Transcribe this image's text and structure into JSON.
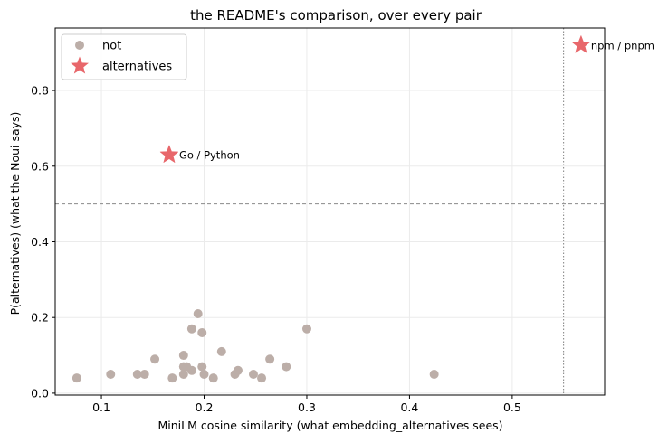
{
  "chart_data": {
    "type": "scatter",
    "title": "the README's comparison, over every pair",
    "xlabel": "MiniLM cosine similarity  (what embedding_alternatives sees)",
    "ylabel": "P(alternatives)  (what the Noui says)",
    "xlim": [
      0.055,
      0.59
    ],
    "ylim": [
      -0.005,
      0.965
    ],
    "xticks": [
      0.1,
      0.2,
      0.3,
      0.4,
      0.5
    ],
    "xtick_labels": [
      "0.1",
      "0.2",
      "0.3",
      "0.4",
      "0.5"
    ],
    "yticks": [
      0.0,
      0.2,
      0.4,
      0.6,
      0.8
    ],
    "ytick_labels": [
      "0.0",
      "0.2",
      "0.4",
      "0.6",
      "0.8"
    ],
    "grid": true,
    "legend_position": "top-left",
    "hline": 0.5,
    "vline": 0.55,
    "series": [
      {
        "name": "not",
        "marker": "circle",
        "color": "#bcaea8",
        "points": [
          {
            "x": 0.076,
            "y": 0.04
          },
          {
            "x": 0.109,
            "y": 0.05
          },
          {
            "x": 0.135,
            "y": 0.05
          },
          {
            "x": 0.142,
            "y": 0.05
          },
          {
            "x": 0.152,
            "y": 0.09
          },
          {
            "x": 0.169,
            "y": 0.04
          },
          {
            "x": 0.18,
            "y": 0.1
          },
          {
            "x": 0.18,
            "y": 0.05
          },
          {
            "x": 0.18,
            "y": 0.07
          },
          {
            "x": 0.183,
            "y": 0.07
          },
          {
            "x": 0.188,
            "y": 0.06
          },
          {
            "x": 0.188,
            "y": 0.17
          },
          {
            "x": 0.194,
            "y": 0.21
          },
          {
            "x": 0.198,
            "y": 0.16
          },
          {
            "x": 0.198,
            "y": 0.07
          },
          {
            "x": 0.2,
            "y": 0.05
          },
          {
            "x": 0.209,
            "y": 0.04
          },
          {
            "x": 0.217,
            "y": 0.11
          },
          {
            "x": 0.23,
            "y": 0.05
          },
          {
            "x": 0.233,
            "y": 0.06
          },
          {
            "x": 0.248,
            "y": 0.05
          },
          {
            "x": 0.256,
            "y": 0.04
          },
          {
            "x": 0.264,
            "y": 0.09
          },
          {
            "x": 0.28,
            "y": 0.07
          },
          {
            "x": 0.3,
            "y": 0.17
          },
          {
            "x": 0.424,
            "y": 0.05
          }
        ]
      },
      {
        "name": "alternatives",
        "marker": "star",
        "color": "#e8676b",
        "points": [
          {
            "x": 0.166,
            "y": 0.63,
            "label": "Go / Python"
          },
          {
            "x": 0.567,
            "y": 0.92,
            "label": "npm / pnpm"
          }
        ]
      }
    ]
  }
}
